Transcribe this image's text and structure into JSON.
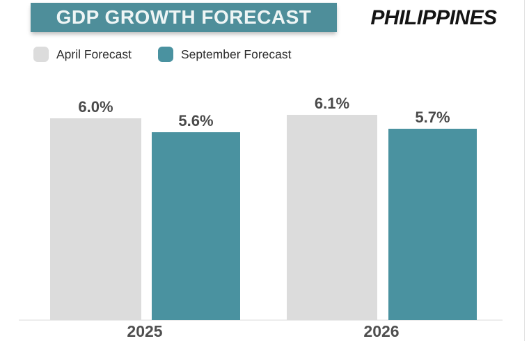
{
  "header": {
    "title": "GDP GROWTH FORECAST",
    "brand": "PHILIPPINES"
  },
  "colors": {
    "header_box": "#4e8e9a",
    "april_bar": "#dcdcdc",
    "september_bar": "#4a92a0",
    "label_text": "#4a4a4a",
    "background": "#ffffff"
  },
  "chart_data": {
    "type": "bar",
    "title": "GDP GROWTH FORECAST",
    "categories": [
      "2025",
      "2026"
    ],
    "series": [
      {
        "name": "April Forecast",
        "color": "#dcdcdc",
        "values": [
          6.0,
          6.1
        ],
        "labels": [
          "6.0%",
          "6.1%"
        ]
      },
      {
        "name": "September Forecast",
        "color": "#4a92a0",
        "values": [
          5.6,
          5.7
        ],
        "labels": [
          "5.6%",
          "5.7%"
        ]
      }
    ],
    "unit": "%",
    "ylim": [
      0,
      6.5
    ],
    "xlabel": "",
    "ylabel": "",
    "grid": false,
    "legend_position": "top-left",
    "value_labels_shown": true
  }
}
